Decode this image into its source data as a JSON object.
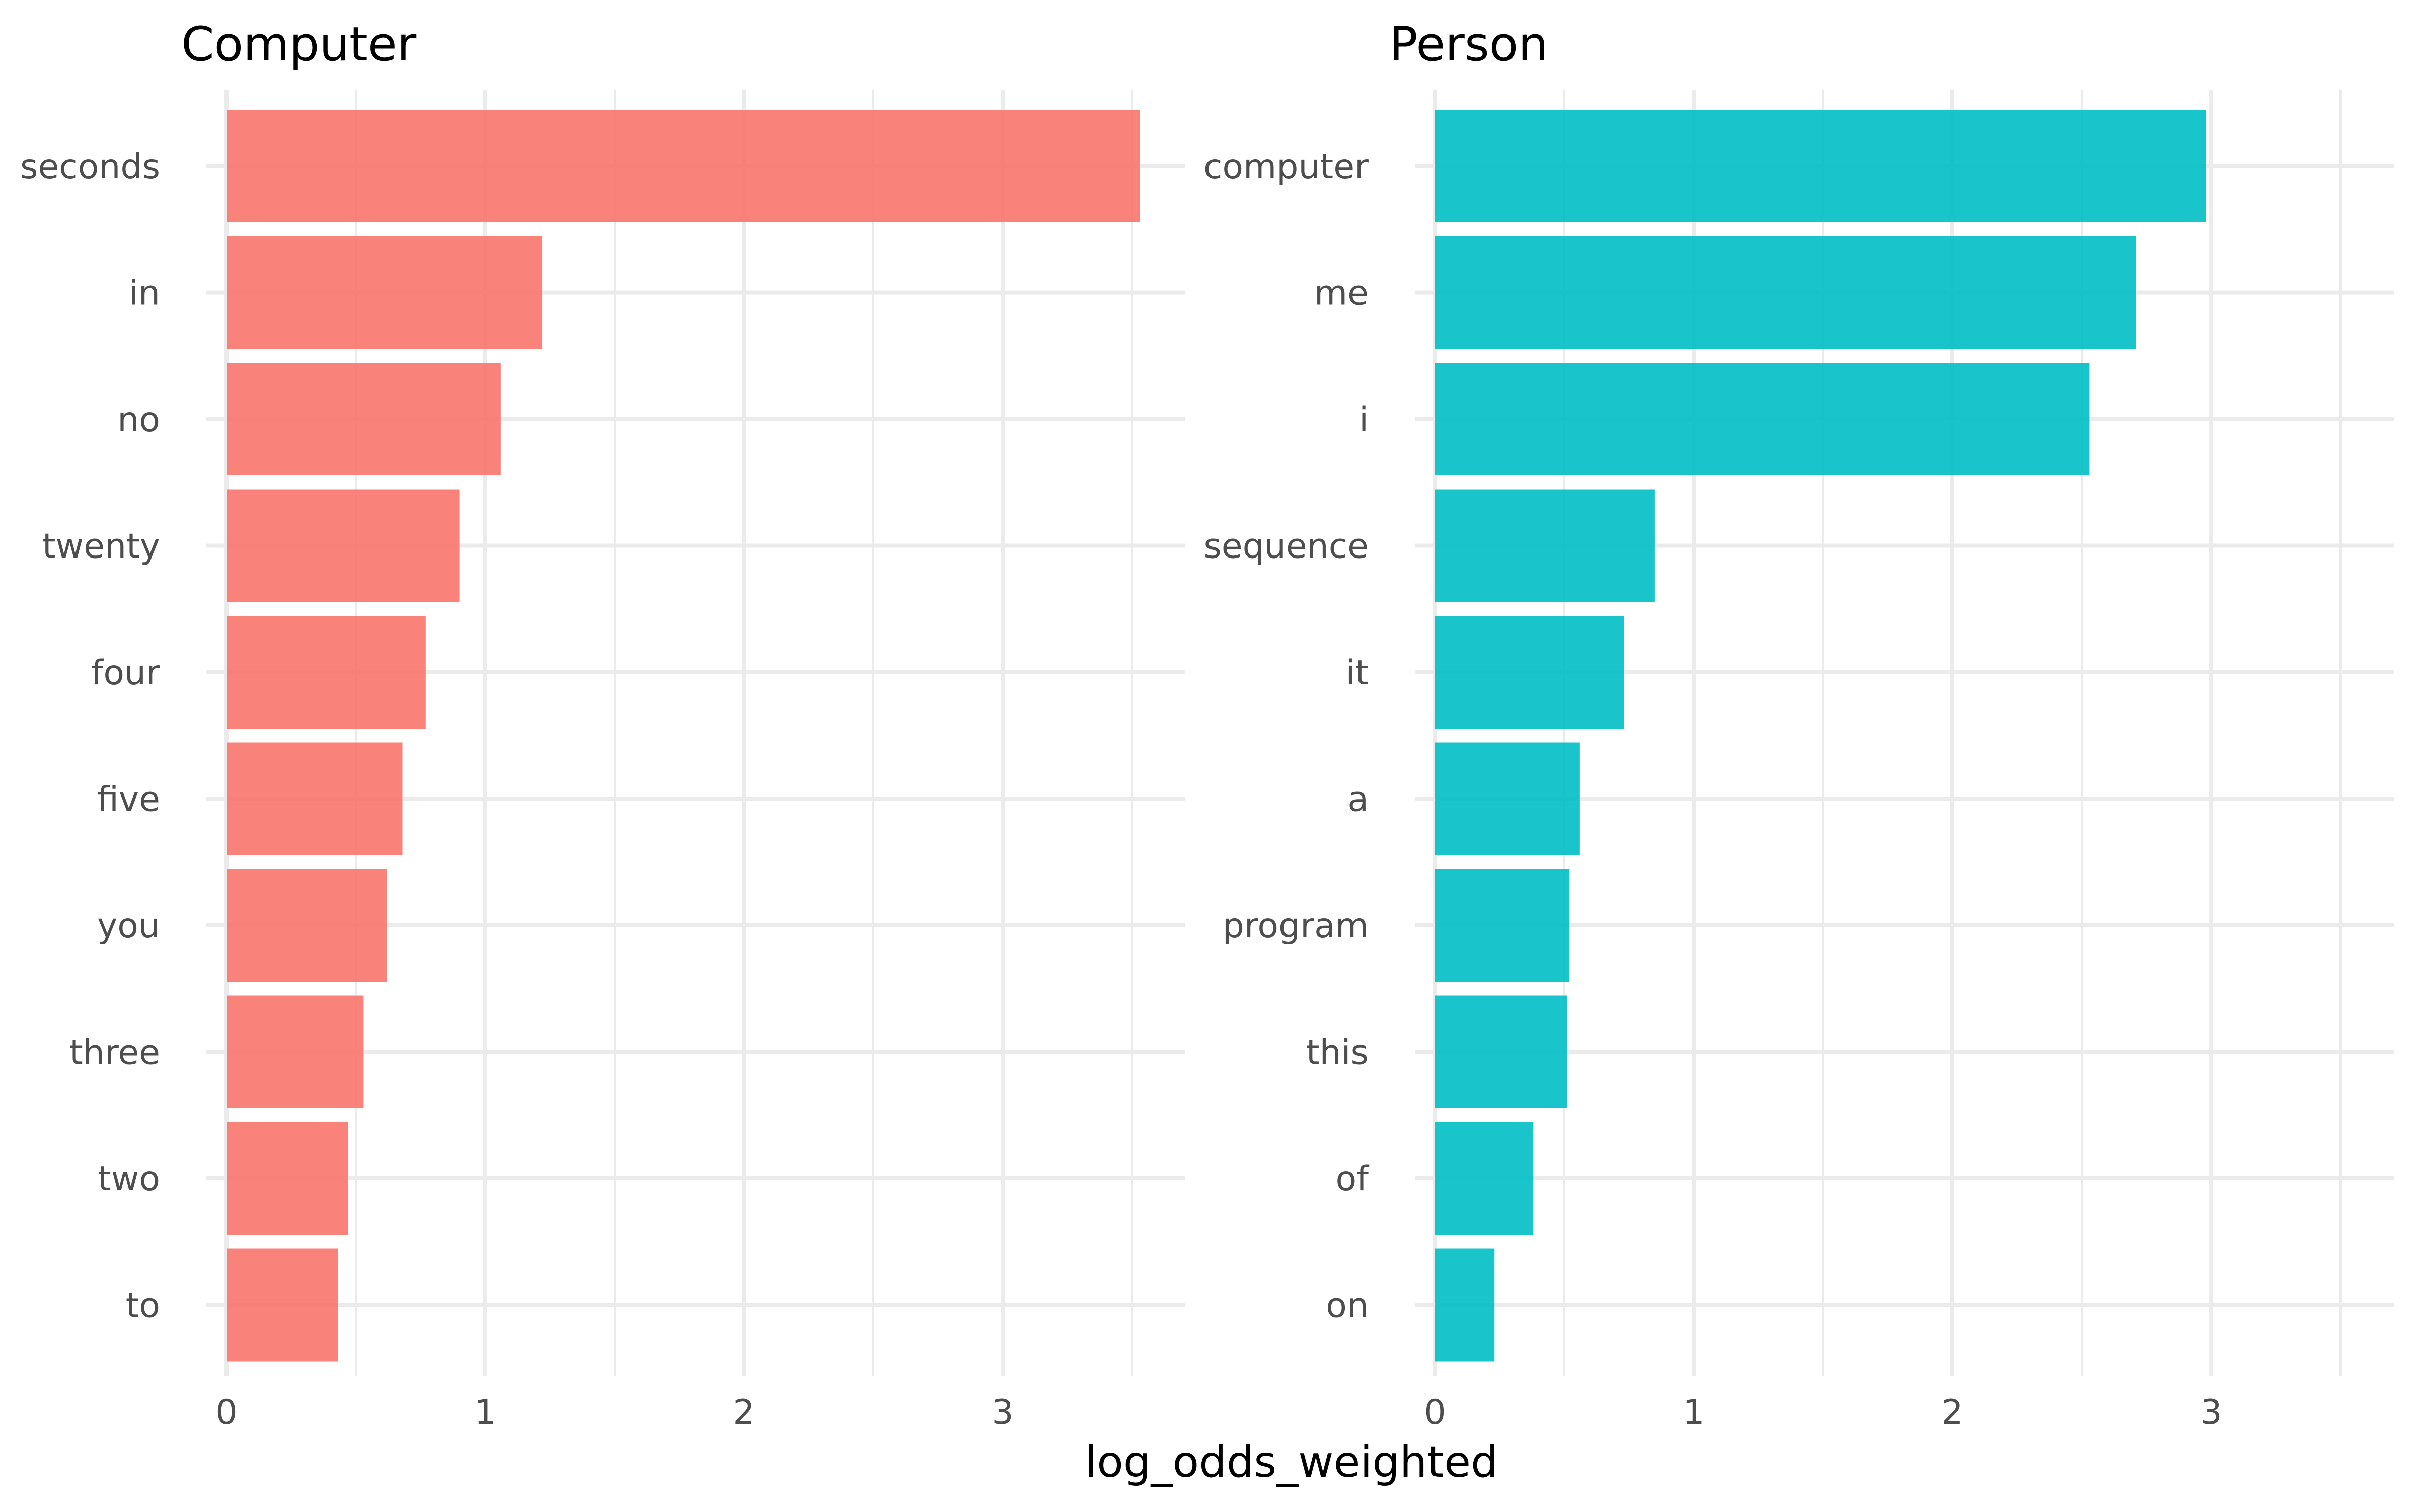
{
  "chart_data": {
    "type": "bar",
    "orientation": "horizontal",
    "xlabel": "log_odds_weighted",
    "xlim": [
      0,
      3.6
    ],
    "x_ticks": [
      "0",
      "1",
      "2",
      "3"
    ],
    "grid": true,
    "panels": [
      {
        "title": "Computer",
        "color": "#F8766D",
        "categories": [
          "seconds",
          "in",
          "no",
          "twenty",
          "four",
          "five",
          "you",
          "three",
          "two",
          "to"
        ],
        "values": [
          3.53,
          1.22,
          1.06,
          0.9,
          0.77,
          0.68,
          0.62,
          0.53,
          0.47,
          0.43
        ]
      },
      {
        "title": "Person",
        "color": "#00BFC4",
        "categories": [
          "computer",
          "me",
          "i",
          "sequence",
          "it",
          "a",
          "program",
          "this",
          "of",
          "on"
        ],
        "values": [
          2.98,
          2.71,
          2.53,
          0.85,
          0.73,
          0.56,
          0.52,
          0.51,
          0.38,
          0.23
        ]
      }
    ]
  }
}
